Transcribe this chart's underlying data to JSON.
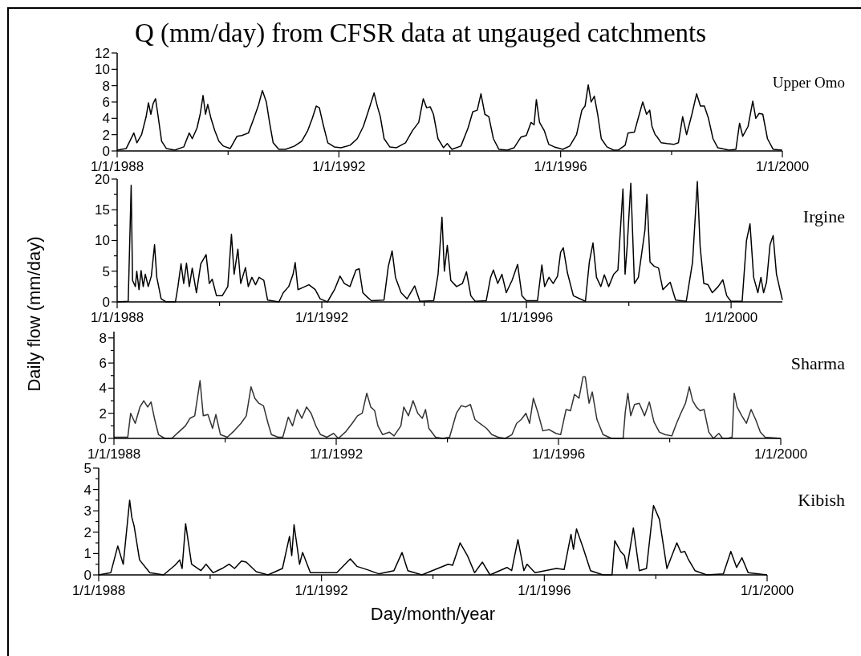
{
  "chart_data": [
    {
      "type": "line",
      "title": "Q (mm/day) from CFSR data at ungauged catchments",
      "xlim": [
        "1988-01-01",
        "2000-01-01"
      ],
      "xticks": [
        {
          "value": "1988-01-01",
          "label": "1/1/1988"
        },
        {
          "value": "1990-01-01",
          "label": null
        },
        {
          "value": "1992-01-01",
          "label": "1/1/1992"
        },
        {
          "value": "1994-01-01",
          "label": null
        },
        {
          "value": "1996-01-01",
          "label": "1/1/1996"
        },
        {
          "value": "1998-01-01",
          "label": null
        },
        {
          "value": "2000-01-01",
          "label": "1/1/2000"
        }
      ],
      "ylim": [
        0,
        12
      ],
      "yticks": [
        0,
        2,
        4,
        6,
        8,
        10,
        12
      ],
      "series": [
        {
          "name": "Upper Omo",
          "color": "#000000",
          "x": [
            "1988-01-01",
            "1988-03-01",
            "1988-04-20",
            "1988-05-10",
            "1988-06-10",
            "1988-07-10",
            "1988-07-25",
            "1988-08-10",
            "1988-08-25",
            "1988-09-10",
            "1988-09-25",
            "1988-10-20",
            "1988-11-20",
            "1989-01-15",
            "1989-03-15",
            "1989-04-20",
            "1989-05-10",
            "1989-06-10",
            "1989-07-01",
            "1989-07-20",
            "1989-08-05",
            "1989-08-20",
            "1989-09-10",
            "1989-10-05",
            "1989-11-01",
            "1989-12-01",
            "1990-01-15",
            "1990-03-01",
            "1990-04-01",
            "1990-05-15",
            "1990-06-20",
            "1990-07-20",
            "1990-08-15",
            "1990-09-10",
            "1990-10-01",
            "1990-10-25",
            "1990-12-01",
            "1991-01-15",
            "1991-03-15",
            "1991-05-01",
            "1991-06-10",
            "1991-07-10",
            "1991-08-05",
            "1991-08-25",
            "1991-09-20",
            "1991-10-20",
            "1991-12-01",
            "1992-01-15",
            "1992-03-15",
            "1992-05-01",
            "1992-06-10",
            "1992-07-15",
            "1992-08-20",
            "1992-09-10",
            "1992-09-30",
            "1992-10-25",
            "1992-12-01",
            "1993-01-15",
            "1993-03-15",
            "1993-04-30",
            "1993-06-10",
            "1993-07-10",
            "1993-08-01",
            "1993-08-25",
            "1993-09-15",
            "1993-10-15",
            "1993-11-20",
            "1993-12-15",
            "1994-01-15",
            "1994-03-15",
            "1994-05-01",
            "1994-06-01",
            "1994-07-01",
            "1994-07-25",
            "1994-08-20",
            "1994-09-15",
            "1994-10-15",
            "1994-11-20",
            "1995-01-15",
            "1995-03-01",
            "1995-04-15",
            "1995-05-20",
            "1995-06-20",
            "1995-07-10",
            "1995-07-25",
            "1995-08-15",
            "1995-09-15",
            "1995-10-15",
            "1995-11-20",
            "1996-01-15",
            "1996-03-01",
            "1996-04-15",
            "1996-05-20",
            "1996-06-10",
            "1996-07-01",
            "1996-07-20",
            "1996-08-10",
            "1996-09-01",
            "1996-09-25",
            "1996-11-01",
            "1996-12-15",
            "1997-01-15",
            "1997-03-01",
            "1997-03-20",
            "1997-05-01",
            "1997-06-01",
            "1997-06-25",
            "1997-07-20",
            "1997-08-10",
            "1997-08-25",
            "1997-09-15",
            "1997-09-25",
            "1997-10-25",
            "1997-12-01",
            "1998-01-15",
            "1998-02-15",
            "1998-03-15",
            "1998-04-10",
            "1998-05-15",
            "1998-06-15",
            "1998-07-10",
            "1998-08-05",
            "1998-09-01",
            "1998-10-01",
            "1998-11-01",
            "1999-01-15",
            "1999-03-01",
            "1999-03-25",
            "1999-04-15",
            "1999-05-20",
            "1999-06-20",
            "1999-07-10",
            "1999-08-01",
            "1999-08-25",
            "1999-09-25",
            "1999-11-01",
            "1999-12-31"
          ],
          "values": [
            0.1,
            0.3,
            2.2,
            1.0,
            2.0,
            4.2,
            5.9,
            4.5,
            5.8,
            6.4,
            4.5,
            1.2,
            0.3,
            0.1,
            0.5,
            2.2,
            1.5,
            2.8,
            4.5,
            6.8,
            4.5,
            5.7,
            4.0,
            2.5,
            1.2,
            0.6,
            0.3,
            1.8,
            1.9,
            2.2,
            4.0,
            5.6,
            7.4,
            6.0,
            3.5,
            1.0,
            0.2,
            0.2,
            0.6,
            1.2,
            2.5,
            4.0,
            5.5,
            5.3,
            3.2,
            1.0,
            0.5,
            0.4,
            0.7,
            1.5,
            3.0,
            5.0,
            7.1,
            5.5,
            4.2,
            1.5,
            0.5,
            0.4,
            1.0,
            2.5,
            3.5,
            6.4,
            5.3,
            5.4,
            4.5,
            1.5,
            0.4,
            0.9,
            0.2,
            0.6,
            2.8,
            4.8,
            5.0,
            7.0,
            4.5,
            4.2,
            1.5,
            0.2,
            0.1,
            0.4,
            1.7,
            1.9,
            3.5,
            3.2,
            6.3,
            3.5,
            2.5,
            0.8,
            0.5,
            0.2,
            0.6,
            2.0,
            5.0,
            5.5,
            8.1,
            6.0,
            6.7,
            4.5,
            1.5,
            0.5,
            0.1,
            0.1,
            0.7,
            2.2,
            2.3,
            4.4,
            6.0,
            4.5,
            5.0,
            3.0,
            2.0,
            1.8,
            1.0,
            0.9,
            0.8,
            1.0,
            4.2,
            2.0,
            4.5,
            7.0,
            5.5,
            5.5,
            4.0,
            1.5,
            0.4,
            0.1,
            0.2,
            3.4,
            1.8,
            3.0,
            6.1,
            4.0,
            4.6,
            4.5,
            1.5,
            0.2,
            0.1
          ]
        }
      ]
    },
    {
      "type": "line",
      "ylabel": "Daily flow (mm/day)",
      "xlim": [
        "1988-01-01",
        "2001-01-01"
      ],
      "xticks": [
        {
          "value": "1988-01-01",
          "label": "1/1/1988"
        },
        {
          "value": "1990-01-01",
          "label": null
        },
        {
          "value": "1992-01-01",
          "label": "1/1/1992"
        },
        {
          "value": "1994-01-01",
          "label": null
        },
        {
          "value": "1996-01-01",
          "label": "1/1/1996"
        },
        {
          "value": "1998-01-01",
          "label": null
        },
        {
          "value": "2000-01-01",
          "label": "1/1/2000"
        }
      ],
      "ylim": [
        0,
        20
      ],
      "yticks": [
        0,
        {
          "value": 2.5,
          "label": null
        },
        5,
        {
          "value": 7.5,
          "label": null
        },
        10,
        {
          "value": 12.5,
          "label": null
        },
        15,
        {
          "value": 17.5,
          "label": null
        },
        20
      ],
      "series": [
        {
          "name": "Irgine",
          "color": "#000000",
          "x": [
            "1988-01-01",
            "1988-03-20",
            "1988-04-10",
            "1988-04-20",
            "1988-05-10",
            "1988-05-20",
            "1988-06-05",
            "1988-06-20",
            "1988-07-05",
            "1988-07-20",
            "1988-08-10",
            "1988-09-01",
            "1988-09-24",
            "1988-10-10",
            "1988-11-10",
            "1988-12-15",
            "1989-02-20",
            "1989-03-10",
            "1989-04-01",
            "1989-04-20",
            "1989-05-10",
            "1989-05-30",
            "1989-06-20",
            "1989-07-20",
            "1989-08-20",
            "1989-09-27",
            "1989-10-20",
            "1989-11-10",
            "1989-12-10",
            "1990-01-20",
            "1990-03-01",
            "1990-03-27",
            "1990-04-15",
            "1990-05-12",
            "1990-06-01",
            "1990-07-05",
            "1990-07-25",
            "1990-08-20",
            "1990-09-15",
            "1990-10-10",
            "1990-11-13",
            "1990-12-10",
            "1991-03-01",
            "1991-04-01",
            "1991-05-10",
            "1991-06-10",
            "1991-06-25",
            "1991-07-15",
            "1991-08-15",
            "1991-10-01",
            "1991-11-15",
            "1991-12-20",
            "1992-02-10",
            "1992-04-01",
            "1992-05-10",
            "1992-06-10",
            "1992-07-20",
            "1992-09-01",
            "1992-09-24",
            "1992-10-20",
            "1992-11-20",
            "1992-12-20",
            "1993-03-20",
            "1993-04-20",
            "1993-05-17",
            "1993-06-10",
            "1993-07-20",
            "1993-09-01",
            "1993-10-25",
            "1993-12-01",
            "1994-03-10",
            "1994-04-10",
            "1994-05-08",
            "1994-05-25",
            "1994-06-15",
            "1994-07-10",
            "1994-08-20",
            "1994-10-01",
            "1994-10-30",
            "1994-11-30",
            "1994-12-31",
            "1995-03-20",
            "1995-04-20",
            "1995-05-10",
            "1995-06-10",
            "1995-07-10",
            "1995-08-10",
            "1995-09-20",
            "1995-10-30",
            "1995-11-30",
            "1995-12-31",
            "1996-03-20",
            "1996-04-20",
            "1996-05-10",
            "1996-06-10",
            "1996-07-10",
            "1996-08-10",
            "1996-09-01",
            "1996-09-20",
            "1996-10-20",
            "1996-12-01",
            "1997-02-25",
            "1997-03-25",
            "1997-04-20",
            "1997-05-15",
            "1997-06-15",
            "1997-07-10",
            "1997-08-10",
            "1997-09-15",
            "1997-10-15",
            "1997-11-20",
            "1997-12-05",
            "1997-12-20",
            "1998-01-15",
            "1998-02-10",
            "1998-03-10",
            "1998-04-26",
            "1998-05-10",
            "1998-06-01",
            "1998-07-01",
            "1998-08-01",
            "1998-09-01",
            "1998-10-23",
            "1998-12-01",
            "1999-02-15",
            "1999-04-01",
            "1999-05-05",
            "1999-05-25",
            "1999-06-20",
            "1999-07-20",
            "1999-08-20",
            "1999-10-01",
            "1999-11-03",
            "1999-12-01",
            "1999-12-31",
            "2000-03-20",
            "2000-04-20",
            "2000-05-15",
            "2000-06-10",
            "2000-07-10",
            "2000-08-01",
            "2000-08-20",
            "2000-09-10",
            "2000-10-05",
            "2000-10-27",
            "2000-11-20",
            "2000-12-20",
            "2001-01-01"
          ],
          "values": [
            0,
            0.1,
            19,
            3.5,
            2.5,
            5.0,
            2.0,
            5.1,
            2.5,
            4.5,
            2.5,
            4.2,
            9.3,
            4.0,
            0.5,
            0,
            0,
            2.5,
            6.2,
            3.0,
            6.3,
            2.5,
            5.5,
            1.5,
            6.2,
            7.7,
            3.0,
            3.7,
            1.0,
            1.0,
            2.5,
            11.0,
            4.5,
            8.6,
            3.0,
            5.6,
            2.5,
            4.0,
            2.8,
            4.0,
            3.5,
            0.3,
            0,
            1.5,
            2.5,
            4.5,
            6.4,
            2.0,
            2.3,
            2.8,
            2.0,
            0.5,
            0,
            2.0,
            4.2,
            3.0,
            2.5,
            5.2,
            5.4,
            1.5,
            0.8,
            0.2,
            0.3,
            5.8,
            8.3,
            4.0,
            1.5,
            0.5,
            2.6,
            0.1,
            0.2,
            4.5,
            13.8,
            5.0,
            9.2,
            3.5,
            2.5,
            3.0,
            4.9,
            1.0,
            0.1,
            0.2,
            4.0,
            5.2,
            3.0,
            4.5,
            1.5,
            3.5,
            6.1,
            1.0,
            0.2,
            0.2,
            6.0,
            2.5,
            4.0,
            3.0,
            4.2,
            8.1,
            8.8,
            4.7,
            1.0,
            0.1,
            6.5,
            9.6,
            4.0,
            2.5,
            4.4,
            2.5,
            4.5,
            5.2,
            18.4,
            4.5,
            9.0,
            19.3,
            3.0,
            4.0,
            11.7,
            17.5,
            6.5,
            5.8,
            5.5,
            2.0,
            3.2,
            0.3,
            0.1,
            6.5,
            19.6,
            9.0,
            3.0,
            2.8,
            1.5,
            2.5,
            3.6,
            1.0,
            0.1,
            0.1,
            10.0,
            12.7,
            4.0,
            1.5,
            4.0,
            1.5,
            3.2,
            9.3,
            10.8,
            4.5,
            1.5,
            0.3
          ]
        }
      ]
    },
    {
      "type": "line",
      "xlim": [
        "1988-01-01",
        "2000-01-01"
      ],
      "xticks": [
        {
          "value": "1988-01-01",
          "label": "1/1/1988"
        },
        {
          "value": "1990-01-01",
          "label": null
        },
        {
          "value": "1992-01-01",
          "label": "1/1/1992"
        },
        {
          "value": "1994-01-01",
          "label": null
        },
        {
          "value": "1996-01-01",
          "label": "1/1/1996"
        },
        {
          "value": "1998-01-01",
          "label": null
        },
        {
          "value": "2000-01-01",
          "label": "1/1/2000"
        }
      ],
      "ylim": [
        0,
        8.5
      ],
      "yticks": [
        0,
        {
          "value": 1,
          "label": null
        },
        2,
        {
          "value": 3,
          "label": null
        },
        4,
        {
          "value": 5,
          "label": null
        },
        6,
        {
          "value": 7,
          "label": null
        },
        8
      ],
      "series": [
        {
          "name": "Sharma",
          "color": "#333333",
          "x": [
            "1988-01-01",
            "1988-04-01",
            "1988-04-20",
            "1988-05-20",
            "1988-06-20",
            "1988-07-15",
            "1988-08-10",
            "1988-09-01",
            "1988-09-25",
            "1988-10-20",
            "1988-12-01",
            "1989-01-15",
            "1989-03-01",
            "1989-04-15",
            "1989-05-15",
            "1989-06-15",
            "1989-07-20",
            "1989-08-10",
            "1989-09-10",
            "1989-10-10",
            "1989-11-01",
            "1989-12-01",
            "1990-01-15",
            "1990-03-01",
            "1990-04-15",
            "1990-05-20",
            "1990-06-20",
            "1990-07-15",
            "1990-08-10",
            "1990-09-10",
            "1990-10-10",
            "1990-11-01",
            "1990-12-15",
            "1991-01-15",
            "1991-02-20",
            "1991-03-20",
            "1991-04-20",
            "1991-05-20",
            "1991-06-20",
            "1991-07-20",
            "1991-08-20",
            "1991-09-20",
            "1991-11-01",
            "1991-12-15",
            "1992-01-15",
            "1992-03-01",
            "1992-04-15",
            "1992-05-20",
            "1992-06-20",
            "1992-07-20",
            "1992-08-15",
            "1992-09-10",
            "1992-10-01",
            "1992-11-01",
            "1992-12-15",
            "1993-01-15",
            "1993-03-01",
            "1993-03-20",
            "1993-04-20",
            "1993-05-20",
            "1993-06-20",
            "1993-07-20",
            "1993-08-10",
            "1993-09-01",
            "1993-10-15",
            "1993-12-01",
            "1994-01-15",
            "1994-03-01",
            "1994-04-01",
            "1994-05-01",
            "1994-06-01",
            "1994-07-01",
            "1994-08-01",
            "1994-09-15",
            "1994-10-20",
            "1994-12-01",
            "1995-01-15",
            "1995-03-01",
            "1995-04-01",
            "1995-05-01",
            "1995-06-01",
            "1995-06-25",
            "1995-07-20",
            "1995-08-20",
            "1995-09-20",
            "1995-11-01",
            "1995-12-15",
            "1996-01-15",
            "1996-02-20",
            "1996-03-20",
            "1996-04-15",
            "1996-05-15",
            "1996-06-10",
            "1996-06-25",
            "1996-07-20",
            "1996-08-10",
            "1996-09-10",
            "1996-10-20",
            "1996-12-15",
            "1997-01-15",
            "1997-03-01",
            "1997-03-15",
            "1997-04-01",
            "1997-04-20",
            "1997-05-15",
            "1997-06-15",
            "1997-07-20",
            "1997-08-20",
            "1997-09-20",
            "1997-10-25",
            "1997-12-01",
            "1998-01-15",
            "1998-02-15",
            "1998-03-15",
            "1998-04-15",
            "1998-05-10",
            "1998-06-01",
            "1998-06-25",
            "1998-07-20",
            "1998-08-15",
            "1998-09-15",
            "1998-10-15",
            "1998-11-20",
            "1998-12-15",
            "1999-01-15",
            "1999-02-15",
            "1999-03-01",
            "1999-03-20",
            "1999-04-20",
            "1999-05-20",
            "1999-06-20",
            "1999-07-20",
            "1999-08-20",
            "1999-09-20",
            "1999-12-31"
          ],
          "values": [
            0.1,
            0.1,
            2.0,
            1.2,
            2.5,
            3.0,
            2.5,
            2.9,
            1.5,
            0.3,
            0,
            0,
            0.5,
            1.0,
            1.6,
            1.8,
            4.6,
            1.8,
            1.9,
            0.8,
            1.9,
            0.3,
            0.1,
            0.6,
            1.2,
            1.8,
            4.1,
            3.2,
            2.8,
            2.6,
            1.2,
            0.3,
            0.1,
            0.1,
            1.7,
            1.0,
            2.3,
            1.6,
            2.5,
            2.0,
            1.0,
            0.3,
            0.1,
            0.4,
            0,
            0.5,
            1.2,
            1.8,
            2.0,
            3.6,
            2.5,
            2.2,
            1.0,
            0.3,
            0.5,
            0.2,
            1.0,
            2.5,
            1.8,
            3.0,
            2.0,
            1.6,
            2.3,
            0.8,
            0.1,
            0,
            0.1,
            2.0,
            2.6,
            2.5,
            2.7,
            1.5,
            1.2,
            0.8,
            0.3,
            0.1,
            0,
            0.3,
            1.2,
            1.5,
            2.0,
            1.2,
            3.2,
            2.0,
            0.6,
            0.7,
            0.4,
            0.3,
            2.3,
            2.2,
            3.5,
            3.2,
            4.9,
            4.9,
            2.8,
            3.7,
            1.5,
            0.3,
            0,
            0,
            0,
            2.1,
            3.6,
            1.8,
            2.7,
            2.8,
            1.8,
            2.9,
            1.3,
            0.5,
            0.3,
            0.2,
            1.2,
            2.0,
            2.8,
            4.1,
            3.0,
            2.5,
            2.2,
            2.3,
            0.5,
            0,
            0.4,
            0,
            0,
            0.1,
            3.6,
            2.5,
            1.8,
            1.2,
            2.3,
            1.5,
            0.5,
            0.1,
            0
          ]
        }
      ]
    },
    {
      "type": "line",
      "xlabel": "Day/month/year",
      "xlim": [
        "1988-01-01",
        "2000-01-01"
      ],
      "xticks": [
        {
          "value": "1988-01-01",
          "label": "1/1/1988"
        },
        {
          "value": "1990-01-01",
          "label": null
        },
        {
          "value": "1992-01-01",
          "label": "1/1/1992"
        },
        {
          "value": "1994-01-01",
          "label": null
        },
        {
          "value": "1996-01-01",
          "label": "1/1/1996"
        },
        {
          "value": "1998-01-01",
          "label": null
        },
        {
          "value": "2000-01-01",
          "label": "1/1/2000"
        }
      ],
      "ylim": [
        0,
        5
      ],
      "yticks": [
        0,
        {
          "value": 0.5,
          "label": null
        },
        1,
        {
          "value": 1.5,
          "label": null
        },
        2,
        {
          "value": 2.5,
          "label": null
        },
        3,
        {
          "value": 3.5,
          "label": null
        },
        4,
        {
          "value": 4.5,
          "label": null
        },
        5
      ],
      "series": [
        {
          "name": "Kibish",
          "color": "#000000",
          "x": [
            "1988-01-01",
            "1988-03-20",
            "1988-05-05",
            "1988-06-10",
            "1988-07-22",
            "1988-08-05",
            "1988-08-20",
            "1988-09-25",
            "1988-12-01",
            "1989-03-01",
            "1989-05-15",
            "1989-06-15",
            "1989-07-01",
            "1989-07-24",
            "1989-09-01",
            "1989-11-01",
            "1989-12-05",
            "1990-01-20",
            "1990-03-20",
            "1990-05-05",
            "1990-06-10",
            "1990-07-25",
            "1990-08-25",
            "1990-10-30",
            "1991-01-15",
            "1991-04-20",
            "1991-06-05",
            "1991-06-20",
            "1991-07-05",
            "1991-08-10",
            "1991-08-30",
            "1991-10-20",
            "1992-04-10",
            "1992-07-08",
            "1992-08-20",
            "1992-10-25",
            "1993-01-10",
            "1993-04-20",
            "1993-06-12",
            "1993-07-20",
            "1993-10-20",
            "1994-04-10",
            "1994-05-10",
            "1994-06-28",
            "1994-08-15",
            "1994-10-01",
            "1994-11-21",
            "1995-01-10",
            "1995-05-01",
            "1995-06-01",
            "1995-07-12",
            "1995-08-20",
            "1995-09-10",
            "1995-11-01",
            "1996-03-20",
            "1996-05-10",
            "1996-06-24",
            "1996-07-10",
            "1996-07-30",
            "1996-09-10",
            "1996-10-30",
            "1997-01-20",
            "1997-03-20",
            "1997-04-07",
            "1997-05-15",
            "1997-06-10",
            "1997-06-25",
            "1997-08-07",
            "1997-09-15",
            "1997-11-01",
            "1997-12-17",
            "1998-01-25",
            "1998-03-15",
            "1998-05-19",
            "1998-06-15",
            "1998-07-10",
            "1998-08-01",
            "1998-09-15",
            "1998-12-01",
            "1999-03-20",
            "1999-05-08",
            "1999-06-15",
            "1999-07-20",
            "1999-08-30",
            "1999-12-31"
          ],
          "values": [
            0,
            0.1,
            1.35,
            0.5,
            3.5,
            2.7,
            2.3,
            0.7,
            0.1,
            0,
            0.45,
            0.7,
            0.3,
            2.4,
            0.5,
            0.2,
            0.5,
            0.1,
            0.3,
            0.5,
            0.3,
            0.65,
            0.6,
            0.15,
            0,
            0.3,
            1.8,
            0.9,
            2.35,
            0.5,
            1.05,
            0.1,
            0.1,
            0.75,
            0.4,
            0.25,
            0.05,
            0.2,
            1.05,
            0.2,
            0,
            0.5,
            0.45,
            1.5,
            0.9,
            0.1,
            0.6,
            0,
            0.35,
            0.2,
            1.65,
            0.2,
            0.5,
            0.1,
            0.3,
            0.25,
            1.9,
            1.2,
            2.15,
            1.3,
            0.2,
            0,
            0,
            1.6,
            1.1,
            0.9,
            0.3,
            2.2,
            0.2,
            0.3,
            3.25,
            2.6,
            0.3,
            1.5,
            1.05,
            1.1,
            0.75,
            0.2,
            0,
            0.05,
            1.1,
            0.35,
            0.8,
            0.1,
            0
          ]
        }
      ]
    }
  ]
}
